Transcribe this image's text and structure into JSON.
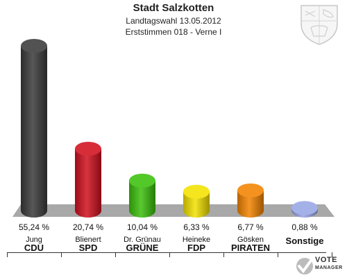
{
  "header": {
    "title": "Stadt Salzkotten",
    "subtitle": "Landtagswahl 13.05.2012",
    "subtitle2": "Erststimmen 018 - Verne I"
  },
  "logo": {
    "line1": "VOTE",
    "line2": "MANAGER"
  },
  "chart_data": {
    "type": "bar",
    "categories": [
      "Jung CDU",
      "Blienert SPD",
      "Dr. Grünau GRÜNE",
      "Heineke FDP",
      "Gösken PIRATEN",
      "Sonstige"
    ],
    "values": [
      55.24,
      20.74,
      10.04,
      6.33,
      6.77,
      0.88
    ],
    "value_labels": [
      "55,24 %",
      "20,74 %",
      "10,04 %",
      "6,33 %",
      "6,77 %",
      "0,88 %"
    ],
    "candidates": [
      "Jung",
      "Blienert",
      "Dr. Grünau",
      "Heineke",
      "Gösken",
      ""
    ],
    "parties": [
      "CDU",
      "SPD",
      "GRÜNE",
      "FDP",
      "PIRATEN",
      "Sonstige"
    ],
    "colors": [
      "#3a3a3a",
      "#d0101e",
      "#3cc00c",
      "#f2e100",
      "#f28300",
      "#98a6e6"
    ],
    "ylim": [
      0,
      55.24
    ]
  }
}
